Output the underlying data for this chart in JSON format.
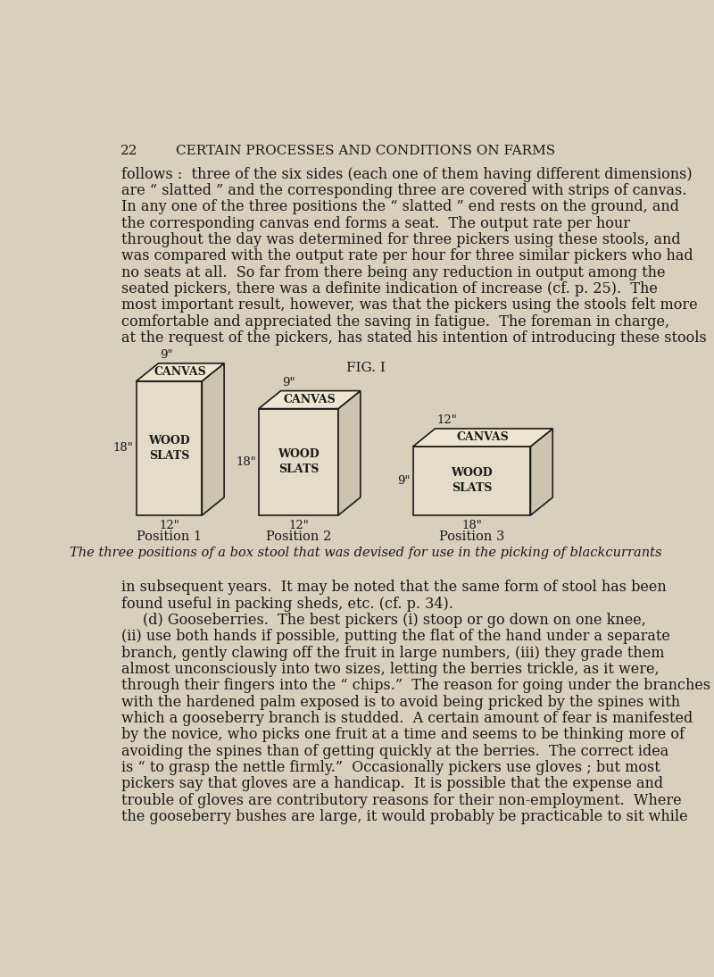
{
  "bg_color": "#d8cfbc",
  "text_color": "#1a1a1a",
  "page_number": "22",
  "header": "CERTAIN PROCESSES AND CONDITIONS ON FARMS",
  "para1": "follows :  three of the six sides (each one of them having different dimensions)\nare “ slatted ” and the corresponding three are covered with strips of canvas.\nIn any one of the three positions the “ slatted ” end rests on the ground, and\nthe corresponding canvas end forms a seat.  The output rate per hour\nthroughout the day was determined for three pickers using these stools, and\nwas compared with the output rate per hour for three similar pickers who had\nno seats at all.  So far from there being any reduction in output among the\nseated pickers, there was a definite indication of increase (cf. p. 25).  The\nmost important result, however, was that the pickers using the stools felt more\ncomfortable and appreciated the saving in fatigue.  The foreman in charge,\nat the request of the pickers, has stated his intention of introducing these stools",
  "fig_title": "FIG. I",
  "caption": "The three positions of a box stool that was devised for use in the picking of blackcurrants",
  "para2": "in subsequent years.  It may be noted that the same form of stool has been\nfound useful in packing sheds, etc. (cf. p. 34).\n    (d) Gooseberries.  The best pickers (i) stoop or go down on one knee,\n(ii) use both hands if possible, putting the flat of the hand under a separate\nbranch, gently clawing off the fruit in large numbers, (iii) they grade them\nalmost unconsciously into two sizes, letting the berries trickle, as it were,\nthrough their fingers into the “ chips.”  The reason for going under the branches\nwith the hardened palm exposed is to avoid being pricked by the spines with\nwhich a gooseberry branch is studded.  A certain amount of fear is manifested\nby the novice, who picks one fruit at a time and seems to be thinking more of\navoiding the spines than of getting quickly at the berries.  The correct idea\nis “ to grasp the nettle firmly.”  Occasionally pickers use gloves ; but most\npickers say that gloves are a handicap.  It is possible that the expense and\ntrouble of gloves are contributory reasons for their non-employment.  Where\nthe gooseberry bushes are large, it would probably be practicable to sit while",
  "pos1_label": "Position 1",
  "pos2_label": "Position 2",
  "pos3_label": "Position 3",
  "pos1_dim_bottom": "12\"",
  "pos1_dim_side": "18\"",
  "pos1_dim_top": "9\"",
  "pos2_dim_bottom": "12\"",
  "pos2_dim_side": "18\"",
  "pos2_dim_top": "9\"",
  "pos3_dim_bottom": "18\"",
  "pos3_dim_side": "9\"",
  "pos3_dim_top": "12\"",
  "pos1_front_label": "WOOD\nSLATS",
  "pos1_top_label": "CANVAS",
  "pos2_front_label": "WOOD\nSLATS",
  "pos2_top_label": "CANVAS",
  "pos3_front_label": "WOOD\nSLATS",
  "pos3_top_label": "CANVAS",
  "face_color": "#e4dcc8",
  "top_color": "#ede5d0",
  "side_color": "#ccc4ae",
  "line_width": 1.2
}
